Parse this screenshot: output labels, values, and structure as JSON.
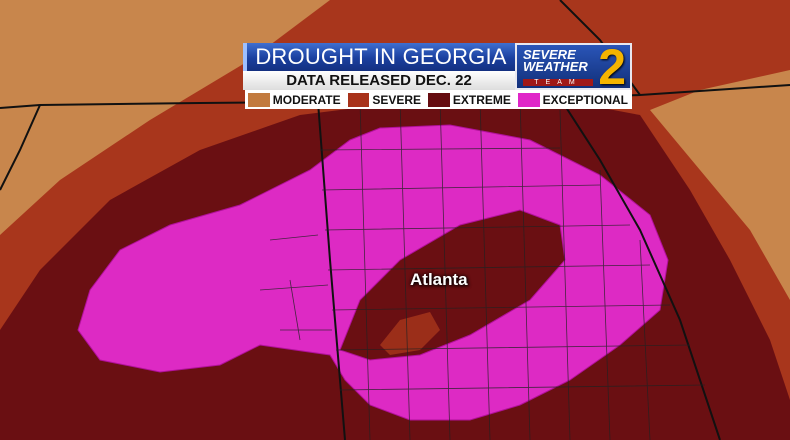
{
  "header": {
    "title": "DROUGHT IN GEORGIA",
    "subtitle": "DATA RELEASED DEC. 22"
  },
  "logo": {
    "line1": "SEVERE",
    "line2": "WEATHER",
    "line3": "TEAM",
    "number": "2"
  },
  "legend": [
    {
      "label": "MODERATE",
      "color": "#c27a3e"
    },
    {
      "label": "SEVERE",
      "color": "#a8321a"
    },
    {
      "label": "EXTREME",
      "color": "#650c10"
    },
    {
      "label": "EXCEPTIONAL",
      "color": "#e026c8"
    }
  ],
  "map": {
    "city_label": "Atlanta",
    "background_color": "#c8864c"
  }
}
